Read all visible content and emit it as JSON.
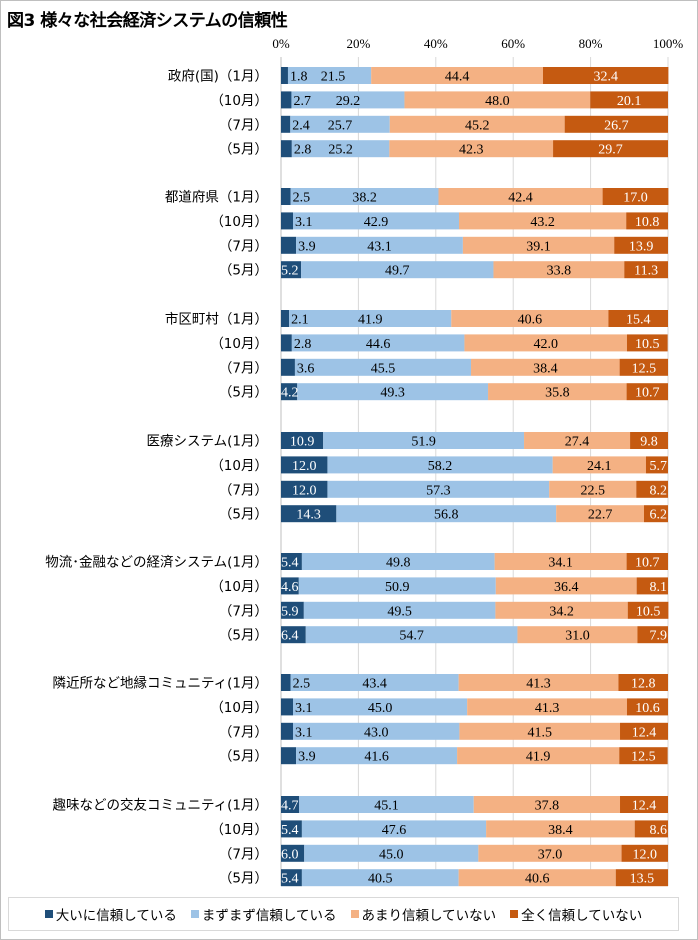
{
  "chart_data": {
    "type": "bar",
    "orientation": "horizontal",
    "stacked": "percent",
    "title": "図3 様々な社会経済システムの信頼性",
    "xlabel": "",
    "ylabel": "",
    "xlim": [
      0,
      100
    ],
    "x_ticks": [
      "0%",
      "20%",
      "40%",
      "60%",
      "80%",
      "100%"
    ],
    "grid": true,
    "legend_position": "bottom",
    "series_names": [
      "大いに信頼している",
      "まずまず信頼している",
      "あまり信頼していない",
      "全く信頼していない"
    ],
    "colors": [
      "#1f4e79",
      "#9dc3e6",
      "#f4b183",
      "#c55a11"
    ],
    "label_colors": [
      "#ffffff",
      "#000000",
      "#000000",
      "#ffffff"
    ],
    "groups": [
      {
        "name": "政府(国)",
        "rows": [
          {
            "label": "政府(国)（1月）",
            "values": [
              1.8,
              21.5,
              44.4,
              32.4
            ]
          },
          {
            "label": "（10月）",
            "values": [
              2.7,
              29.2,
              48.0,
              20.1
            ]
          },
          {
            "label": "（7月）",
            "values": [
              2.4,
              25.7,
              45.2,
              26.7
            ]
          },
          {
            "label": "（5月）",
            "values": [
              2.8,
              25.2,
              42.3,
              29.7
            ]
          }
        ]
      },
      {
        "name": "都道府県",
        "rows": [
          {
            "label": "都道府県（1月）",
            "values": [
              2.5,
              38.2,
              42.4,
              17.0
            ]
          },
          {
            "label": "（10月）",
            "values": [
              3.1,
              42.9,
              43.2,
              10.8
            ]
          },
          {
            "label": "（7月）",
            "values": [
              3.9,
              43.1,
              39.1,
              13.9
            ]
          },
          {
            "label": "（5月）",
            "values": [
              5.2,
              49.7,
              33.8,
              11.3
            ]
          }
        ]
      },
      {
        "name": "市区町村",
        "rows": [
          {
            "label": "市区町村（1月）",
            "values": [
              2.1,
              41.9,
              40.6,
              15.4
            ]
          },
          {
            "label": "（10月）",
            "values": [
              2.8,
              44.6,
              42.0,
              10.5
            ]
          },
          {
            "label": "（7月）",
            "values": [
              3.6,
              45.5,
              38.4,
              12.5
            ]
          },
          {
            "label": "（5月）",
            "values": [
              4.2,
              49.3,
              35.8,
              10.7
            ]
          }
        ]
      },
      {
        "name": "医療システム",
        "rows": [
          {
            "label": "医療システム(1月）",
            "values": [
              10.9,
              51.9,
              27.4,
              9.8
            ]
          },
          {
            "label": "（10月）",
            "values": [
              12.0,
              58.2,
              24.1,
              5.7
            ]
          },
          {
            "label": "（7月）",
            "values": [
              12.0,
              57.3,
              22.5,
              8.2
            ]
          },
          {
            "label": "（5月）",
            "values": [
              14.3,
              56.8,
              22.7,
              6.2
            ]
          }
        ]
      },
      {
        "name": "物流･金融などの経済システム",
        "rows": [
          {
            "label": "物流･金融などの経済システム(1月）",
            "values": [
              5.4,
              49.8,
              34.1,
              10.7
            ]
          },
          {
            "label": "（10月）",
            "values": [
              4.6,
              50.9,
              36.4,
              8.1
            ]
          },
          {
            "label": "（7月）",
            "values": [
              5.9,
              49.5,
              34.2,
              10.5
            ]
          },
          {
            "label": "（5月）",
            "values": [
              6.4,
              54.7,
              31.0,
              7.9
            ]
          }
        ]
      },
      {
        "name": "隣近所など地縁コミュニティ",
        "rows": [
          {
            "label": "隣近所など地縁コミュニティ(1月）",
            "values": [
              2.5,
              43.4,
              41.3,
              12.8
            ]
          },
          {
            "label": "（10月）",
            "values": [
              3.1,
              45.0,
              41.3,
              10.6
            ]
          },
          {
            "label": "（7月）",
            "values": [
              3.1,
              43.0,
              41.5,
              12.4
            ]
          },
          {
            "label": "（5月）",
            "values": [
              3.9,
              41.6,
              41.9,
              12.5
            ]
          }
        ]
      },
      {
        "name": "趣味などの交友コミュニティ",
        "rows": [
          {
            "label": "趣味などの交友コミュニティ(1月）",
            "values": [
              4.7,
              45.1,
              37.8,
              12.4
            ]
          },
          {
            "label": "（10月）",
            "values": [
              5.4,
              47.6,
              38.4,
              8.6
            ]
          },
          {
            "label": "（7月）",
            "values": [
              6.0,
              45.0,
              37.0,
              12.0
            ]
          },
          {
            "label": "（5月）",
            "values": [
              5.4,
              40.5,
              40.6,
              13.5
            ]
          }
        ]
      }
    ]
  }
}
